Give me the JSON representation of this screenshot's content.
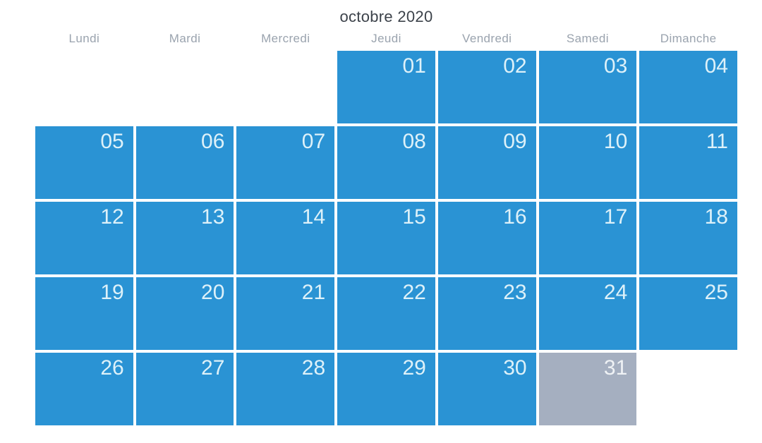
{
  "calendar": {
    "title": "octobre 2020",
    "weekdays": [
      "Lundi",
      "Mardi",
      "Mercredi",
      "Jeudi",
      "Vendredi",
      "Samedi",
      "Dimanche"
    ],
    "weeks": [
      [
        null,
        null,
        null,
        {
          "day": "01",
          "state": "active"
        },
        {
          "day": "02",
          "state": "active"
        },
        {
          "day": "03",
          "state": "active"
        },
        {
          "day": "04",
          "state": "active"
        }
      ],
      [
        {
          "day": "05",
          "state": "active"
        },
        {
          "day": "06",
          "state": "active"
        },
        {
          "day": "07",
          "state": "active"
        },
        {
          "day": "08",
          "state": "active"
        },
        {
          "day": "09",
          "state": "active"
        },
        {
          "day": "10",
          "state": "active"
        },
        {
          "day": "11",
          "state": "active"
        }
      ],
      [
        {
          "day": "12",
          "state": "active"
        },
        {
          "day": "13",
          "state": "active"
        },
        {
          "day": "14",
          "state": "active"
        },
        {
          "day": "15",
          "state": "active"
        },
        {
          "day": "16",
          "state": "active"
        },
        {
          "day": "17",
          "state": "active"
        },
        {
          "day": "18",
          "state": "active"
        }
      ],
      [
        {
          "day": "19",
          "state": "active"
        },
        {
          "day": "20",
          "state": "active"
        },
        {
          "day": "21",
          "state": "active"
        },
        {
          "day": "22",
          "state": "active"
        },
        {
          "day": "23",
          "state": "active"
        },
        {
          "day": "24",
          "state": "active"
        },
        {
          "day": "25",
          "state": "active"
        }
      ],
      [
        {
          "day": "26",
          "state": "active"
        },
        {
          "day": "27",
          "state": "active"
        },
        {
          "day": "28",
          "state": "active"
        },
        {
          "day": "29",
          "state": "active"
        },
        {
          "day": "30",
          "state": "active"
        },
        {
          "day": "31",
          "state": "disabled"
        },
        null
      ]
    ],
    "colors": {
      "available_day_bg": "#2a93d4",
      "unavailable_day_bg": "#a5afc0",
      "day_number_text": "#ddf1f9",
      "title_text": "#3c424a",
      "weekday_text": "#9aa3ae",
      "background": "#ffffff"
    }
  }
}
